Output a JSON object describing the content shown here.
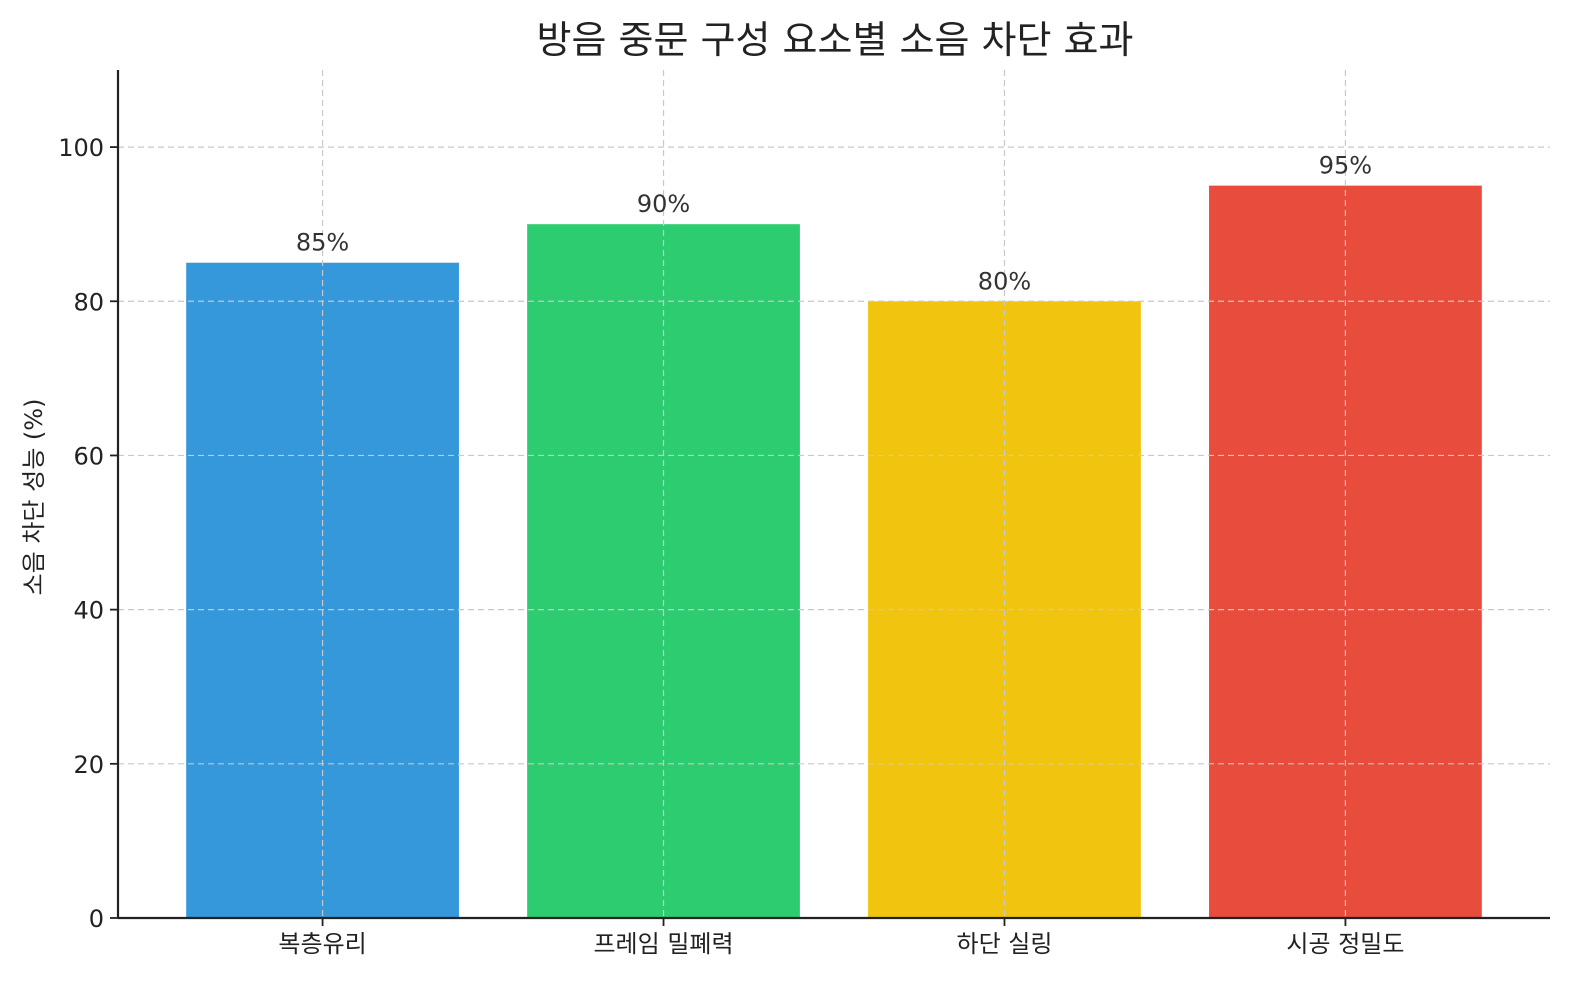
{
  "chart_data": {
    "type": "bar",
    "title": "방음 중문 구성 요소별 소음 차단 효과",
    "xlabel": "",
    "ylabel": "소음 차단 성능 (%)",
    "categories": [
      "복층유리",
      "프레임 밀폐력",
      "하단 실링",
      "시공 정밀도"
    ],
    "values": [
      85,
      90,
      80,
      95
    ],
    "value_labels": [
      "85%",
      "90%",
      "80%",
      "95%"
    ],
    "colors": [
      "#3498db",
      "#2ecc71",
      "#f1c40f",
      "#e74c3c"
    ],
    "ylim": [
      0,
      110
    ],
    "yticks": [
      0,
      20,
      40,
      60,
      80,
      100
    ],
    "ytick_labels": [
      "0",
      "20",
      "40",
      "60",
      "80",
      "100"
    ],
    "grid": true,
    "legend": "none"
  }
}
